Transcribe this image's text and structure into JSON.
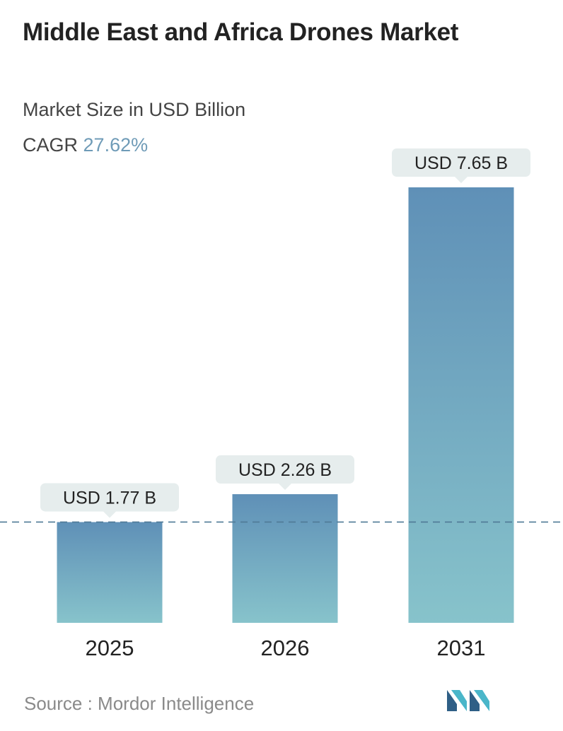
{
  "header": {
    "title": "Middle East and Africa Drones Market",
    "subtitle": "Market Size in USD Billion",
    "cagr_label": "CAGR",
    "cagr_value": "27.62%"
  },
  "footer": {
    "source": "Source :  Mordor Intelligence",
    "logo_icon": "mordor-intelligence-logo-icon"
  },
  "colors": {
    "bar_top": "#5f90b7",
    "bar_bottom": "#87c3cb",
    "label_bg": "#e6eded",
    "dashed_line": "#4f7a96",
    "cagr_accent": "#6f9bb7"
  },
  "chart_data": {
    "type": "bar",
    "categories": [
      "2025",
      "2026",
      "2031"
    ],
    "values": [
      1.77,
      2.26,
      7.65
    ],
    "value_labels": [
      "USD 1.77 B",
      "USD 2.26 B",
      "USD 7.65 B"
    ],
    "title": "Middle East and Africa Drones Market",
    "subtitle": "Market Size in USD Billion",
    "reference_line": 1.77,
    "grid": false,
    "legend": "none"
  }
}
